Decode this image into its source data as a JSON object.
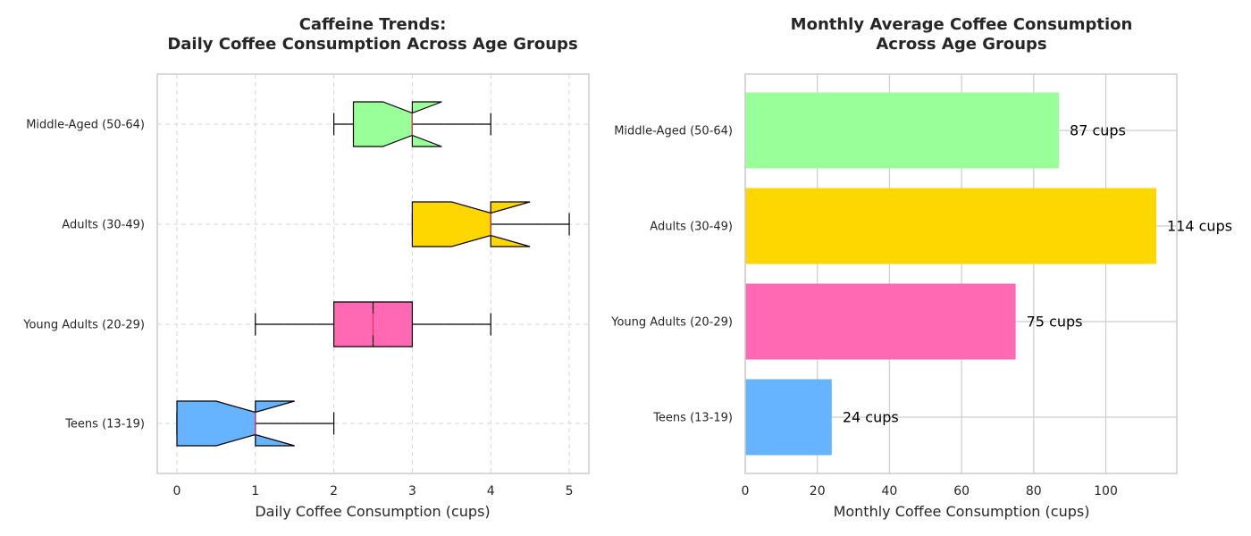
{
  "chart_data": [
    {
      "type": "boxplot",
      "orientation": "horizontal",
      "notched": true,
      "title_line1": "Caffeine Trends:",
      "title_line2": "Daily Coffee Consumption Across Age Groups",
      "xlabel": "Daily Coffee Consumption (cups)",
      "ylabel": "",
      "xlim": [
        -0.25,
        5.25
      ],
      "xticks": [
        "0",
        "1",
        "2",
        "3",
        "4",
        "5"
      ],
      "grid": "dashed",
      "categories": [
        "Teens (13-19)",
        "Young Adults (20-29)",
        "Adults (30-49)",
        "Middle-Aged (50-64)"
      ],
      "boxes": [
        {
          "label": "Teens (13-19)",
          "whisker_low": 0,
          "q1": 0,
          "median": 1,
          "q3": 1,
          "whisker_high": 2,
          "notch_low": 0.5,
          "notch_high": 1.5,
          "color": "#66b3ff"
        },
        {
          "label": "Young Adults (20-29)",
          "whisker_low": 1,
          "q1": 2,
          "median": 2.5,
          "q3": 3,
          "whisker_high": 4,
          "notch_low": 2.5,
          "notch_high": 2.5,
          "color": "#ff69b4"
        },
        {
          "label": "Adults (30-49)",
          "whisker_low": 3,
          "q1": 3,
          "median": 4,
          "q3": 4,
          "whisker_high": 5,
          "notch_low": 3.5,
          "notch_high": 4.5,
          "color": "#ffd700"
        },
        {
          "label": "Middle-Aged (50-64)",
          "whisker_low": 2,
          "q1": 2.25,
          "median": 3,
          "q3": 3,
          "whisker_high": 4,
          "notch_low": 2.625,
          "notch_high": 3.375,
          "color": "#99ff99"
        }
      ]
    },
    {
      "type": "bar",
      "orientation": "horizontal",
      "title_line1": "Monthly Average Coffee Consumption",
      "title_line2": "Across Age Groups",
      "xlabel": "Monthly Coffee Consumption (cups)",
      "ylabel": "",
      "xlim": [
        0,
        119.7
      ],
      "xticks": [
        "0",
        "20",
        "40",
        "60",
        "80",
        "100"
      ],
      "grid": "solid",
      "categories": [
        "Teens (13-19)",
        "Young Adults (20-29)",
        "Adults (30-49)",
        "Middle-Aged (50-64)"
      ],
      "values": [
        24,
        75,
        114,
        87
      ],
      "labels": [
        "24 cups",
        "75 cups",
        "114 cups",
        "87 cups"
      ],
      "colors": [
        "#66b3ff",
        "#ff69b4",
        "#ffd700",
        "#99ff99"
      ]
    }
  ]
}
